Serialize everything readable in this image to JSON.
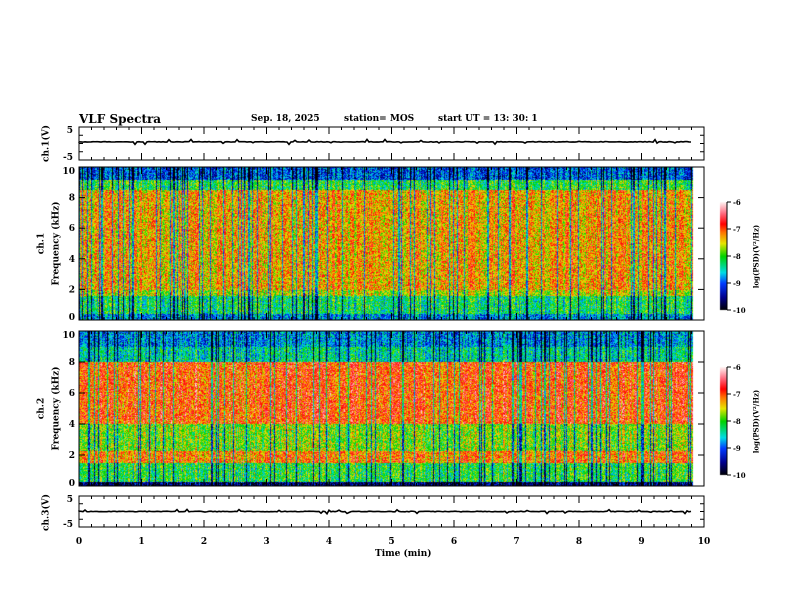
{
  "header": {
    "title": "VLF Spectra",
    "date": "Sep. 18, 2025",
    "station": "station= MOS",
    "start": "start  UT =   13: 30: 1"
  },
  "chart_data": {
    "type": "heatmap",
    "title": "VLF Spectra",
    "xlabel": "Time  (min)",
    "xlim": [
      0,
      10
    ],
    "x_ticks": [
      "0",
      "1",
      "2",
      "3",
      "4",
      "5",
      "6",
      "7",
      "8",
      "9",
      "10"
    ],
    "data_end_min": 9.83,
    "panels": [
      {
        "name": "ch1-waveform",
        "ylabel": "ch.1(V)",
        "ylim": [
          -5,
          5
        ],
        "y_ticks": [
          "5",
          "-5"
        ]
      },
      {
        "name": "ch1-spectrogram",
        "ylabel": "ch.1",
        "ylabel2": "Frequency (kHz)",
        "ylim": [
          0,
          10
        ],
        "y_ticks": [
          "0",
          "2",
          "4",
          "6",
          "8",
          "10"
        ],
        "colorbar": {
          "label": "log(PSD)(V²/Hz)",
          "range": [
            -10,
            -6
          ],
          "ticks": [
            "-6",
            "-7",
            "-8",
            "-9",
            "-10"
          ]
        }
      },
      {
        "name": "ch2-spectrogram",
        "ylabel": "ch.2",
        "ylabel2": "Frequency (kHz)",
        "ylim": [
          0,
          10
        ],
        "y_ticks": [
          "0",
          "2",
          "4",
          "6",
          "8",
          "10"
        ],
        "colorbar": {
          "label": "log(PSD)(V²/Hz)",
          "range": [
            -10,
            -6
          ],
          "ticks": [
            "-6",
            "-7",
            "-8",
            "-9",
            "-10"
          ]
        }
      },
      {
        "name": "ch3-waveform",
        "ylabel": "ch.3(V)",
        "ylim": [
          -5,
          5
        ],
        "y_ticks": [
          "5",
          "-5"
        ]
      }
    ]
  }
}
